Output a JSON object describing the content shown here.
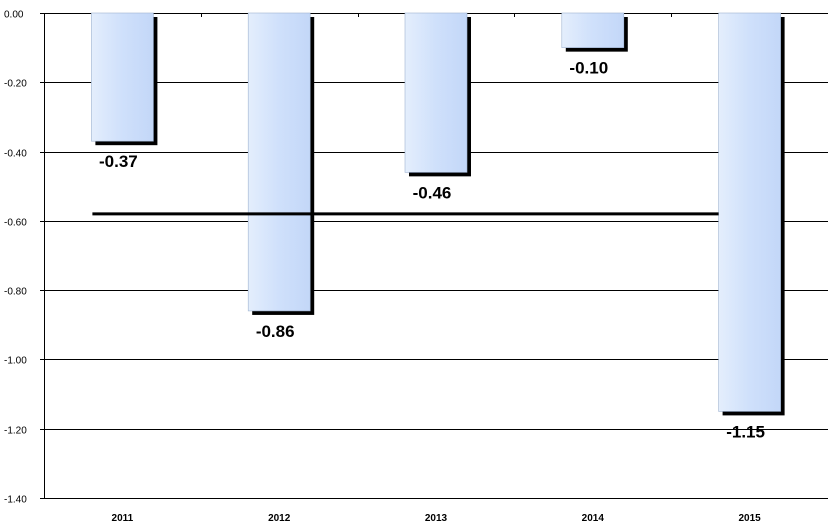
{
  "chart_data": {
    "type": "bar",
    "categories": [
      "2011",
      "2012",
      "2013",
      "2014",
      "2015"
    ],
    "values": [
      -0.37,
      -0.86,
      -0.46,
      -0.1,
      -1.15
    ],
    "data_labels": [
      "-0.37",
      "-0.86",
      "-0.46",
      "-0.10",
      "-1.15"
    ],
    "reference_line": -0.58,
    "ylim": [
      -1.4,
      0.0
    ],
    "yticks": [
      0.0,
      -0.2,
      -0.4,
      -0.6,
      -0.8,
      -1.0,
      -1.2,
      -1.4
    ],
    "ytick_labels": [
      "0.00",
      "-0.20",
      "-0.40",
      "-0.60",
      "-0.80",
      "-1.00",
      "-1.20",
      "-1.40"
    ],
    "grid": true,
    "title": "",
    "xlabel": "",
    "ylabel": "",
    "bar_color": "#cce0ff",
    "bar_shadow_color": "#000000",
    "reference_line_color": "#000000"
  }
}
